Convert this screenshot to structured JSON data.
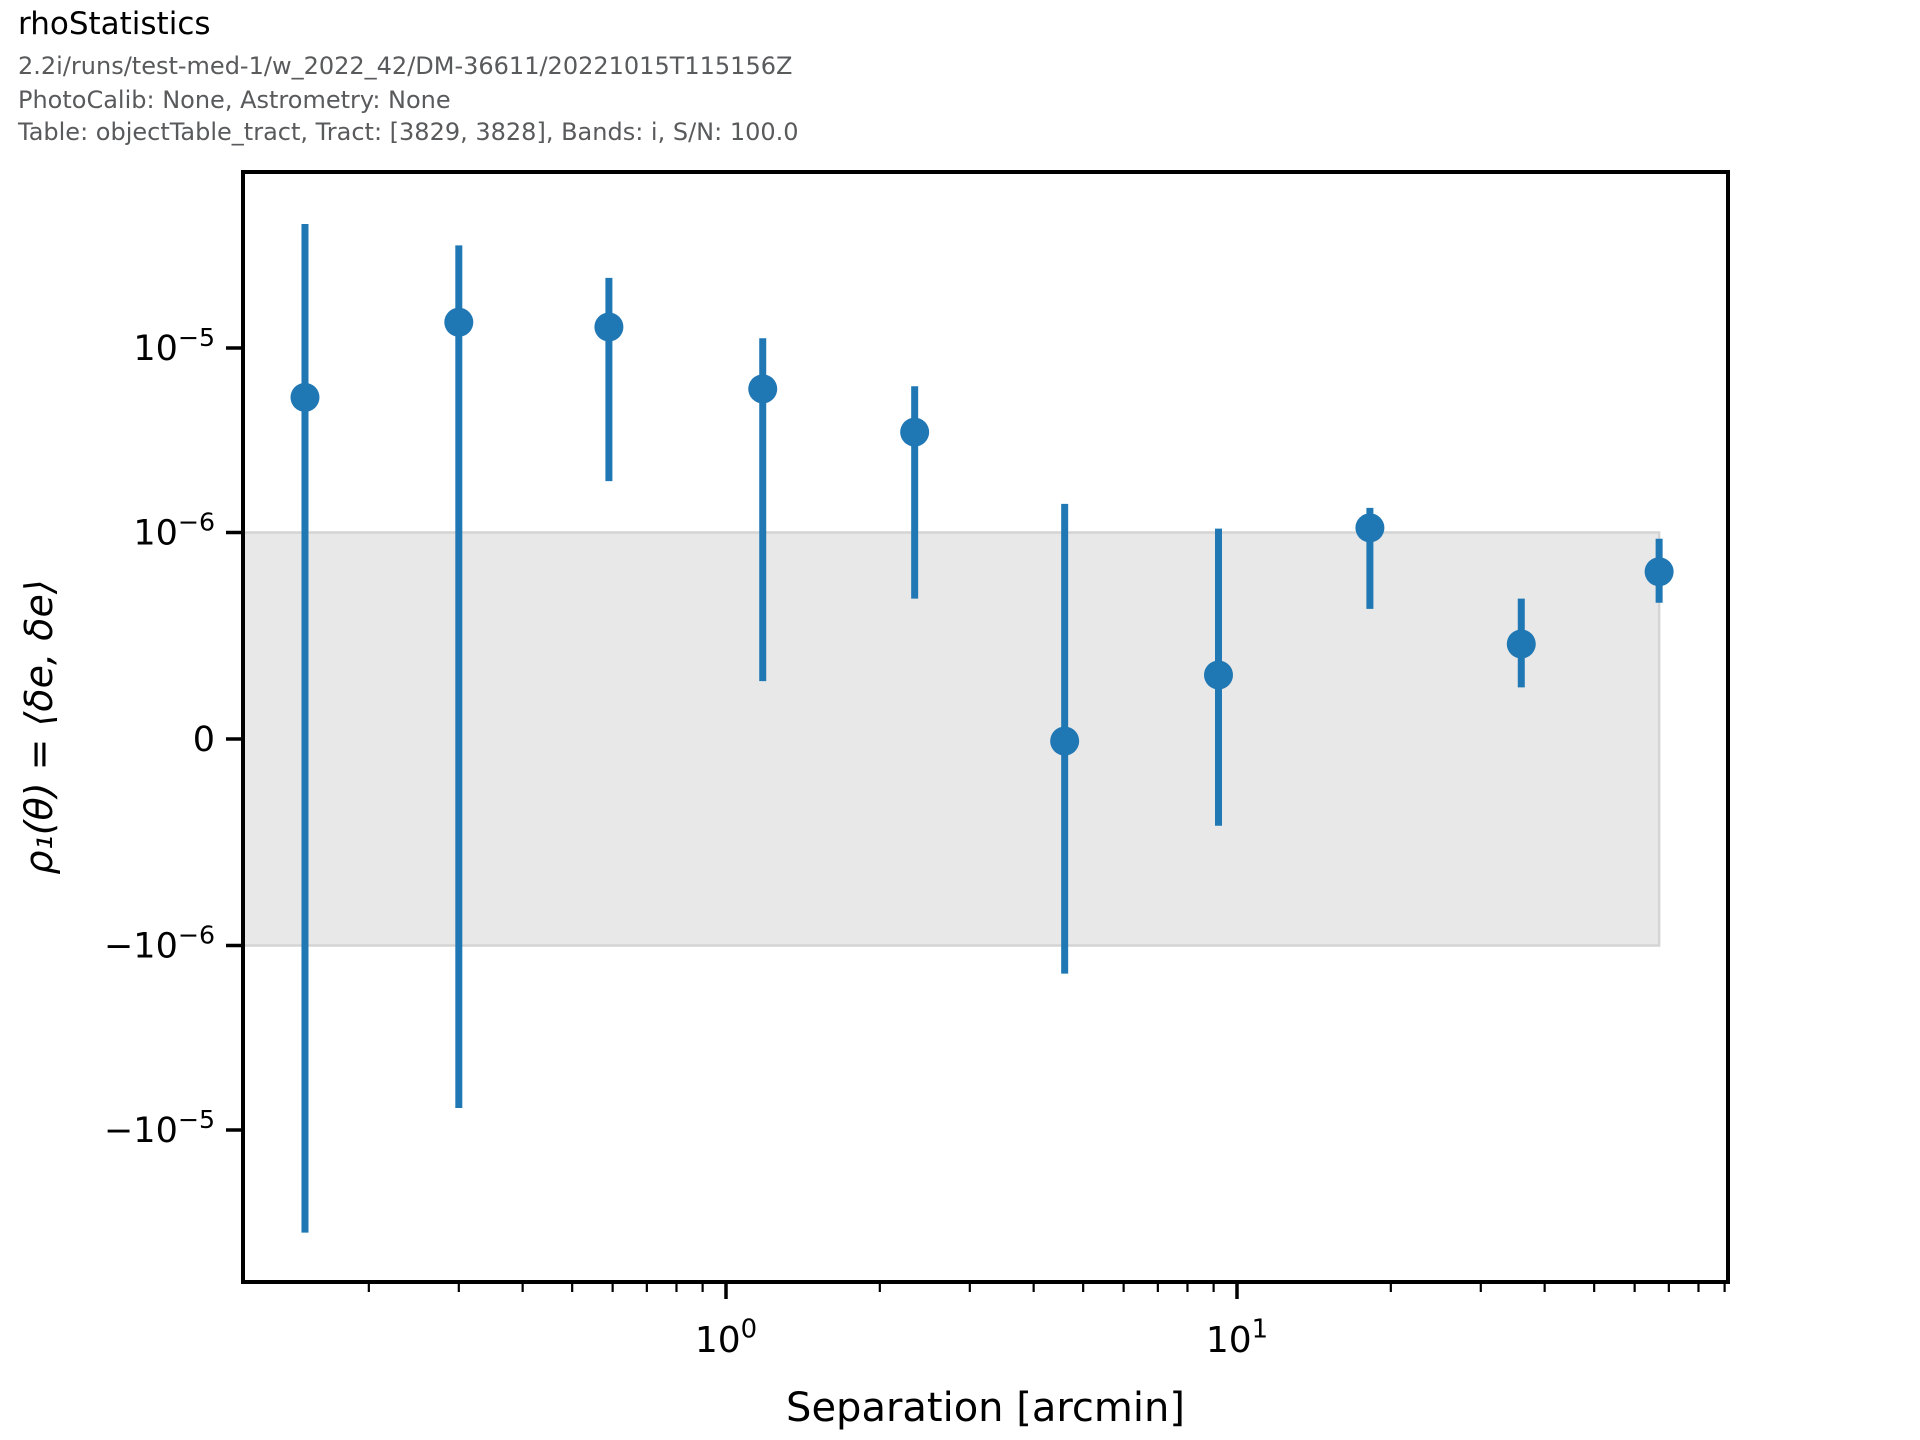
{
  "header": {
    "title": "rhoStatistics",
    "subtitle_lines": [
      "2.2i/runs/test-med-1/w_2022_42/DM-36611/20221015T115156Z",
      "PhotoCalib: None, Astrometry: None",
      "Table: objectTable_tract, Tract: [3829, 3828], Bands: i, S/N: 100.0"
    ]
  },
  "chart_data": {
    "type": "scatter",
    "title": "rhoStatistics",
    "xlabel": "Separation [arcmin]",
    "ylabel": "ρ₁(θ) = ⟨δe, δe⟩",
    "x_scale": "log",
    "y_scale": "symlog",
    "y_linthresh": 1e-06,
    "x_range": [
      0.1135,
      91.0
    ],
    "y_range": [
      -6.9e-05,
      9e-05
    ],
    "grid": false,
    "legend": "none",
    "x_ticks": [
      {
        "value": 1,
        "label": "10^0"
      },
      {
        "value": 10,
        "label": "10^1"
      }
    ],
    "x_minor_ticks": [
      0.2,
      0.3,
      0.4,
      0.5,
      0.6,
      0.7,
      0.8,
      0.9,
      2,
      3,
      4,
      5,
      6,
      7,
      8,
      9,
      20,
      30,
      40,
      50,
      60,
      70,
      80,
      90
    ],
    "y_ticks": [
      {
        "value": 1e-05,
        "label": "10^-5"
      },
      {
        "value": 1e-06,
        "label": "10^-6"
      },
      {
        "value": 0,
        "label": "0"
      },
      {
        "value": -1e-06,
        "label": "-10^-6"
      },
      {
        "value": -1e-05,
        "label": "-10^-5"
      }
    ],
    "shaded_band": {
      "y_min": -1e-06,
      "y_max": 1e-06,
      "x_min": 0.1135,
      "x_max": 67.0,
      "fill_color": "#e8e8e8",
      "edge_color": "#d4d4d4"
    },
    "series": [
      {
        "name": "rho1",
        "marker": "circle",
        "color": "#1f77b4",
        "points": [
          {
            "x": 0.15,
            "y": 5.4e-06,
            "y_hi": 4.7e-05,
            "y_lo": -3.6e-05
          },
          {
            "x": 0.3,
            "y": 1.38e-05,
            "y_hi": 3.6e-05,
            "y_lo": -7.6e-06
          },
          {
            "x": 0.59,
            "y": 1.3e-05,
            "y_hi": 2.4e-05,
            "y_lo": 1.9e-06
          },
          {
            "x": 1.18,
            "y": 6e-06,
            "y_hi": 1.13e-05,
            "y_lo": 2.8e-07
          },
          {
            "x": 2.34,
            "y": 3.5e-06,
            "y_hi": 6.2e-06,
            "y_lo": 6.8e-07
          },
          {
            "x": 4.6,
            "y": -1e-08,
            "y_hi": 1.43e-06,
            "y_lo": -1.42e-06
          },
          {
            "x": 9.2,
            "y": 3.1e-07,
            "y_hi": 1.05e-06,
            "y_lo": -4.2e-07
          },
          {
            "x": 18.2,
            "y": 1.06e-06,
            "y_hi": 1.36e-06,
            "y_lo": 6.3e-07
          },
          {
            "x": 36.0,
            "y": 4.6e-07,
            "y_hi": 6.8e-07,
            "y_lo": 2.5e-07
          },
          {
            "x": 67.0,
            "y": 8.1e-07,
            "y_hi": 9.7e-07,
            "y_lo": 6.6e-07
          }
        ]
      }
    ]
  }
}
